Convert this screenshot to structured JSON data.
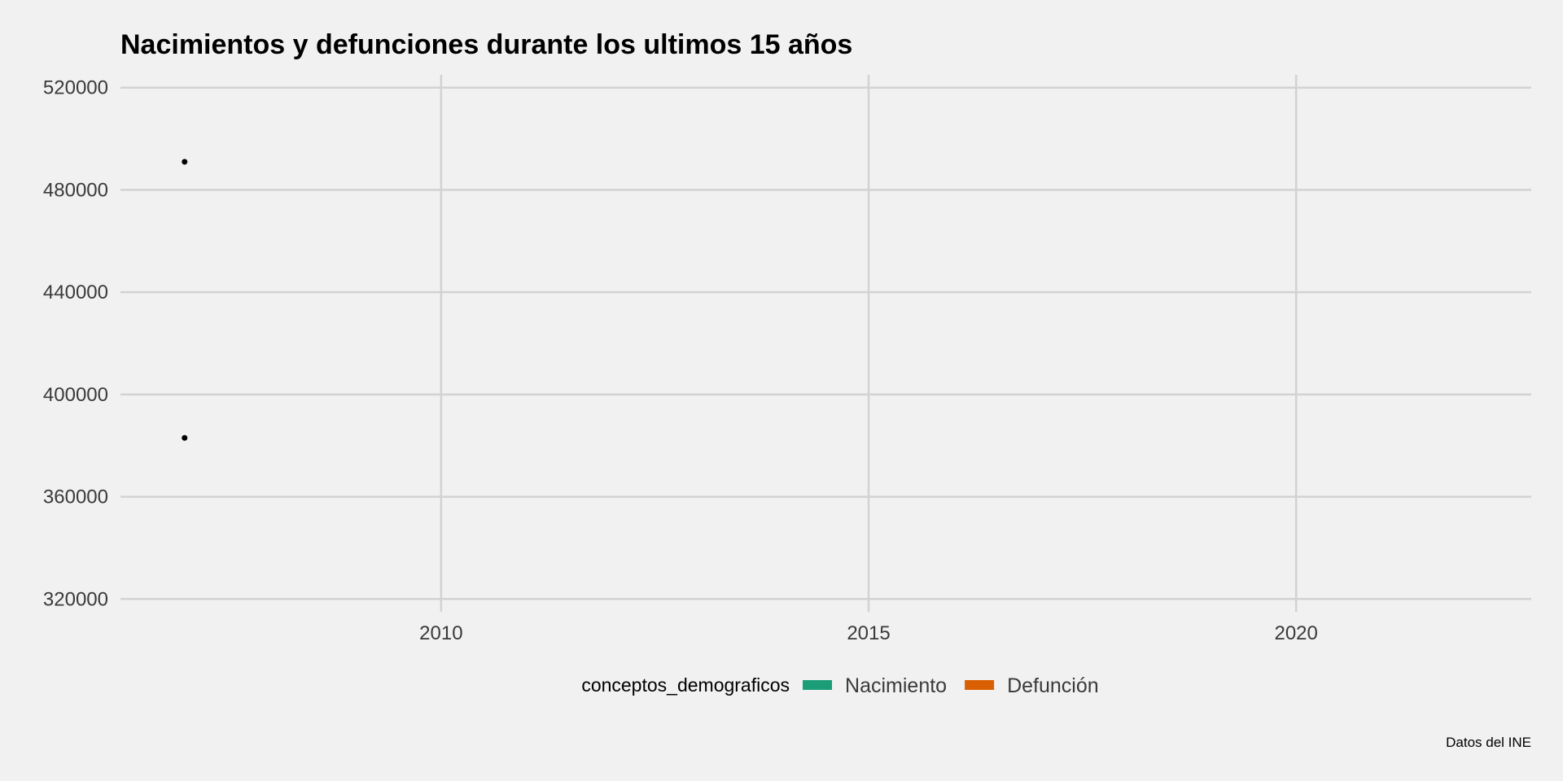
{
  "chart_data": {
    "type": "scatter",
    "title": "Nacimientos y defunciones durante los ultimos 15 años",
    "xlabel": "",
    "ylabel": "",
    "xlim": [
      2006.25,
      2022.75
    ],
    "ylim": [
      315000,
      525000
    ],
    "x_ticks": [
      2010,
      2015,
      2020
    ],
    "x_tick_labels": [
      "2010",
      "2015",
      "2020"
    ],
    "y_ticks": [
      320000,
      360000,
      400000,
      440000,
      480000,
      520000
    ],
    "y_tick_labels": [
      "320000",
      "360000",
      "400000",
      "440000",
      "480000",
      "520000"
    ],
    "grid": true,
    "legend_position": "bottom",
    "legend_title": "conceptos_demograficos",
    "legend": [
      {
        "label": "Nacimiento",
        "color": "#1b9e77"
      },
      {
        "label": "Defunción",
        "color": "#d95f02"
      }
    ],
    "series": [
      {
        "name": "Nacimiento",
        "x": [
          2007
        ],
        "y": [
          491000
        ]
      },
      {
        "name": "Defunción",
        "x": [
          2007
        ],
        "y": [
          383000
        ]
      }
    ],
    "point_color": "#000000",
    "grid_color": "#d2d2d2",
    "caption": "Datos del INE"
  }
}
